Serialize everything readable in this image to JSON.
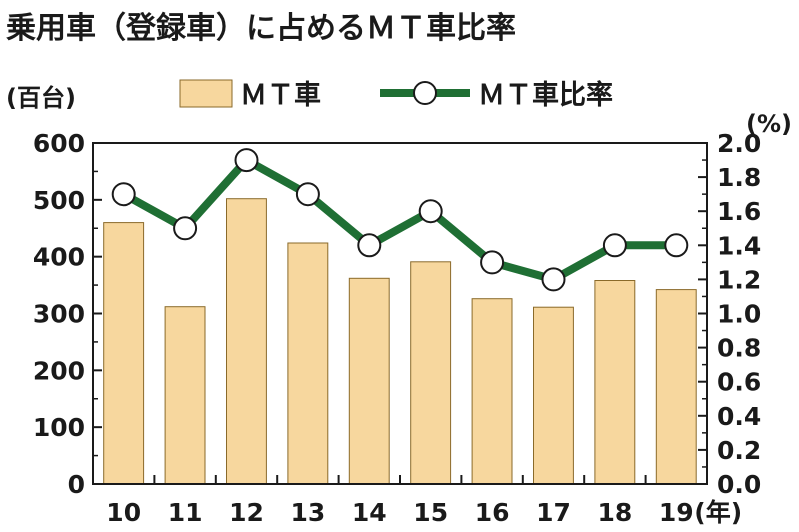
{
  "chart_data": {
    "type": "bar+line",
    "title": "乗用車（登録車）に占めるＭＴ車比率",
    "categories": [
      "10",
      "11",
      "12",
      "13",
      "14",
      "15",
      "16",
      "17",
      "18",
      "19"
    ],
    "x_unit": "(年)",
    "series": [
      {
        "name": "ＭＴ車",
        "type": "bar",
        "axis": "left",
        "color": "#f7d79e",
        "values": [
          460,
          312,
          502,
          424,
          362,
          391,
          326,
          311,
          358,
          342
        ]
      },
      {
        "name": "ＭＴ車比率",
        "type": "line",
        "axis": "right",
        "color": "#1f6f34",
        "values": [
          1.7,
          1.5,
          1.9,
          1.7,
          1.4,
          1.6,
          1.3,
          1.2,
          1.4,
          1.4
        ]
      }
    ],
    "y_left": {
      "unit": "(百台)",
      "ylim": [
        0,
        600
      ],
      "ticks": [
        "0",
        "100",
        "200",
        "300",
        "400",
        "500",
        "600"
      ]
    },
    "y_right": {
      "unit": "(%)",
      "ylim": [
        0,
        2.0
      ],
      "ticks": [
        "0.0",
        "0.2",
        "0.4",
        "0.6",
        "0.8",
        "1.0",
        "1.2",
        "1.4",
        "1.6",
        "1.8",
        "2.0"
      ]
    },
    "legend_placement": "top-center",
    "grid": false
  }
}
